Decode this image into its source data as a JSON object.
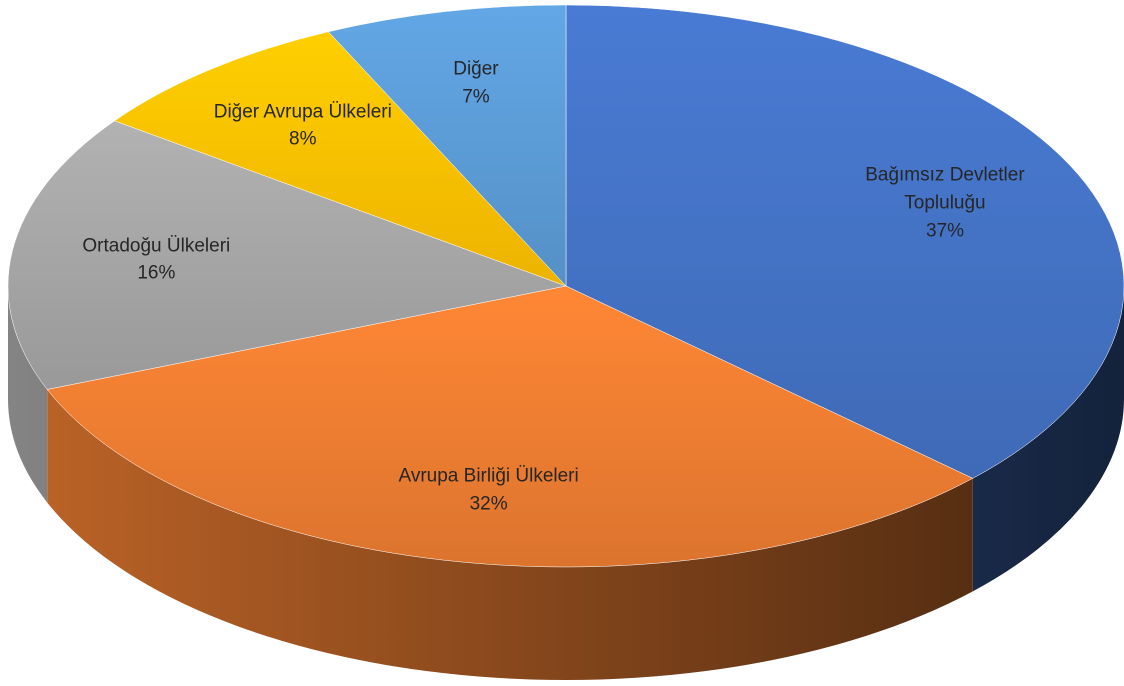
{
  "chart_data": {
    "type": "pie",
    "categories": [
      "Bağımsız Devletler Topluluğu",
      "Avrupa Birliği Ülkeleri",
      "Ortadoğu Ülkeleri",
      "Diğer Avrupa Ülkeleri",
      "Diğer"
    ],
    "values": [
      37,
      32,
      16,
      8,
      7
    ],
    "value_labels": [
      "37%",
      "32%",
      "16%",
      "8%",
      "7%"
    ],
    "colors": [
      "#4472c4",
      "#ed7d31",
      "#a5a5a5",
      "#ffc000",
      "#5b9bd5"
    ]
  }
}
